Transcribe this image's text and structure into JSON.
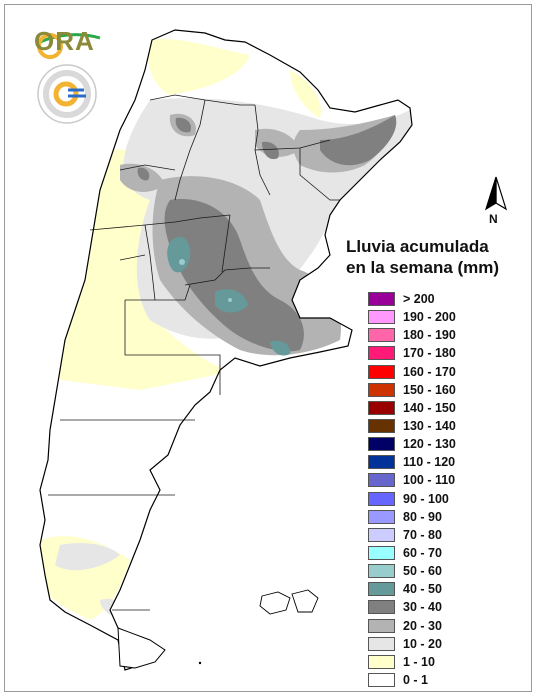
{
  "logo": {
    "ora_text": "ORA"
  },
  "legend": {
    "title_line1": "Lluvia acumulada",
    "title_line2": "en la semana (mm)",
    "items": [
      {
        "label": "> 200",
        "color": "#990099"
      },
      {
        "label": "190 - 200",
        "color": "#ff99ff"
      },
      {
        "label": "180 - 190",
        "color": "#ff66aa"
      },
      {
        "label": "170 - 180",
        "color": "#ff1a77"
      },
      {
        "label": "160 - 170",
        "color": "#ff0000"
      },
      {
        "label": "150 - 160",
        "color": "#cc3300"
      },
      {
        "label": "140 - 150",
        "color": "#990000"
      },
      {
        "label": "130 - 140",
        "color": "#663300"
      },
      {
        "label": "120 - 130",
        "color": "#000066"
      },
      {
        "label": "110 - 120",
        "color": "#003399"
      },
      {
        "label": "100 - 110",
        "color": "#6666cc"
      },
      {
        "label": "90 - 100",
        "color": "#6666ff"
      },
      {
        "label": "80 - 90",
        "color": "#9999ff"
      },
      {
        "label": "70 - 80",
        "color": "#ccccff"
      },
      {
        "label": "60 - 70",
        "color": "#99ffff"
      },
      {
        "label": "50 - 60",
        "color": "#99cccc"
      },
      {
        "label": "40 - 50",
        "color": "#669999"
      },
      {
        "label": "30 - 40",
        "color": "#808080"
      },
      {
        "label": "20 - 30",
        "color": "#b3b3b3"
      },
      {
        "label": "10 - 20",
        "color": "#e6e6e6"
      },
      {
        "label": "1 - 10",
        "color": "#ffffcc"
      },
      {
        "label": "0 - 1",
        "color": "#ffffff"
      }
    ]
  },
  "north_arrow": {
    "label": "N"
  },
  "colors": {
    "light_yellow": "#ffffcc",
    "light_gray": "#e6e6e6",
    "mid_gray": "#b3b3b3",
    "dark_gray": "#808080",
    "teal": "#669999",
    "light_teal": "#99cccc",
    "border": "#000000"
  }
}
